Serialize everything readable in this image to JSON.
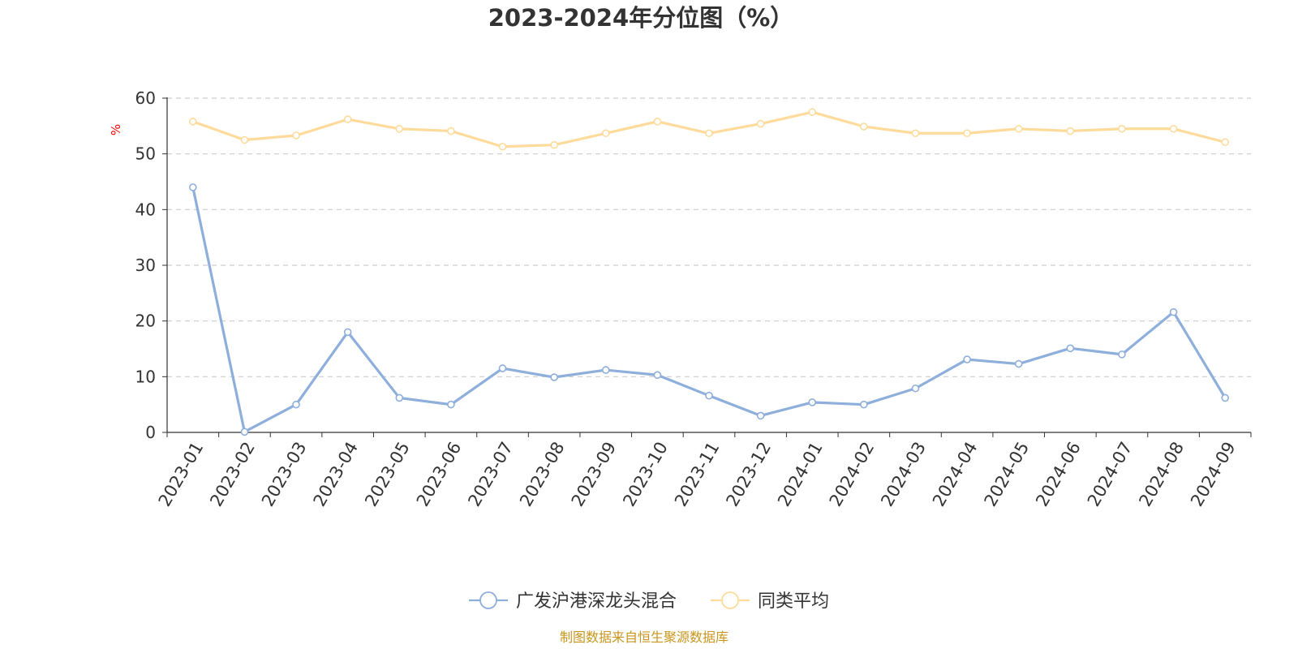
{
  "chart_data": {
    "type": "line",
    "title": "2023-2024年分位图（%）",
    "ylabel": "%",
    "ylim": [
      0,
      60
    ],
    "yticks": [
      0,
      10,
      20,
      30,
      40,
      50,
      60
    ],
    "grid": true,
    "legend_position": "bottom-center",
    "categories": [
      "2023-01",
      "2023-02",
      "2023-03",
      "2023-04",
      "2023-05",
      "2023-06",
      "2023-07",
      "2023-08",
      "2023-09",
      "2023-10",
      "2023-11",
      "2023-12",
      "2024-01",
      "2024-02",
      "2024-03",
      "2024-04",
      "2024-05",
      "2024-06",
      "2024-07",
      "2024-08",
      "2024-09"
    ],
    "series": [
      {
        "name": "广发沪港深龙头混合",
        "color": "#8eaedb",
        "values": [
          44.0,
          0.1,
          5.0,
          18.0,
          6.2,
          5.0,
          11.5,
          9.9,
          11.2,
          10.3,
          6.6,
          3.0,
          5.4,
          5.0,
          7.9,
          13.1,
          12.3,
          15.1,
          14.0,
          21.6,
          6.2
        ]
      },
      {
        "name": "同类平均",
        "color": "#fedb9b",
        "values": [
          55.8,
          52.5,
          53.3,
          56.2,
          54.5,
          54.1,
          51.3,
          51.6,
          53.7,
          55.8,
          53.7,
          55.4,
          57.5,
          54.9,
          53.7,
          53.7,
          54.5,
          54.1,
          54.5,
          54.5,
          52.1
        ]
      }
    ]
  },
  "colors": {
    "axis": "#333333",
    "grid": "#cccccc",
    "ylabel": "#ff0000",
    "source": "#c8961e"
  },
  "source_text": "制图数据来自恒生聚源数据库"
}
